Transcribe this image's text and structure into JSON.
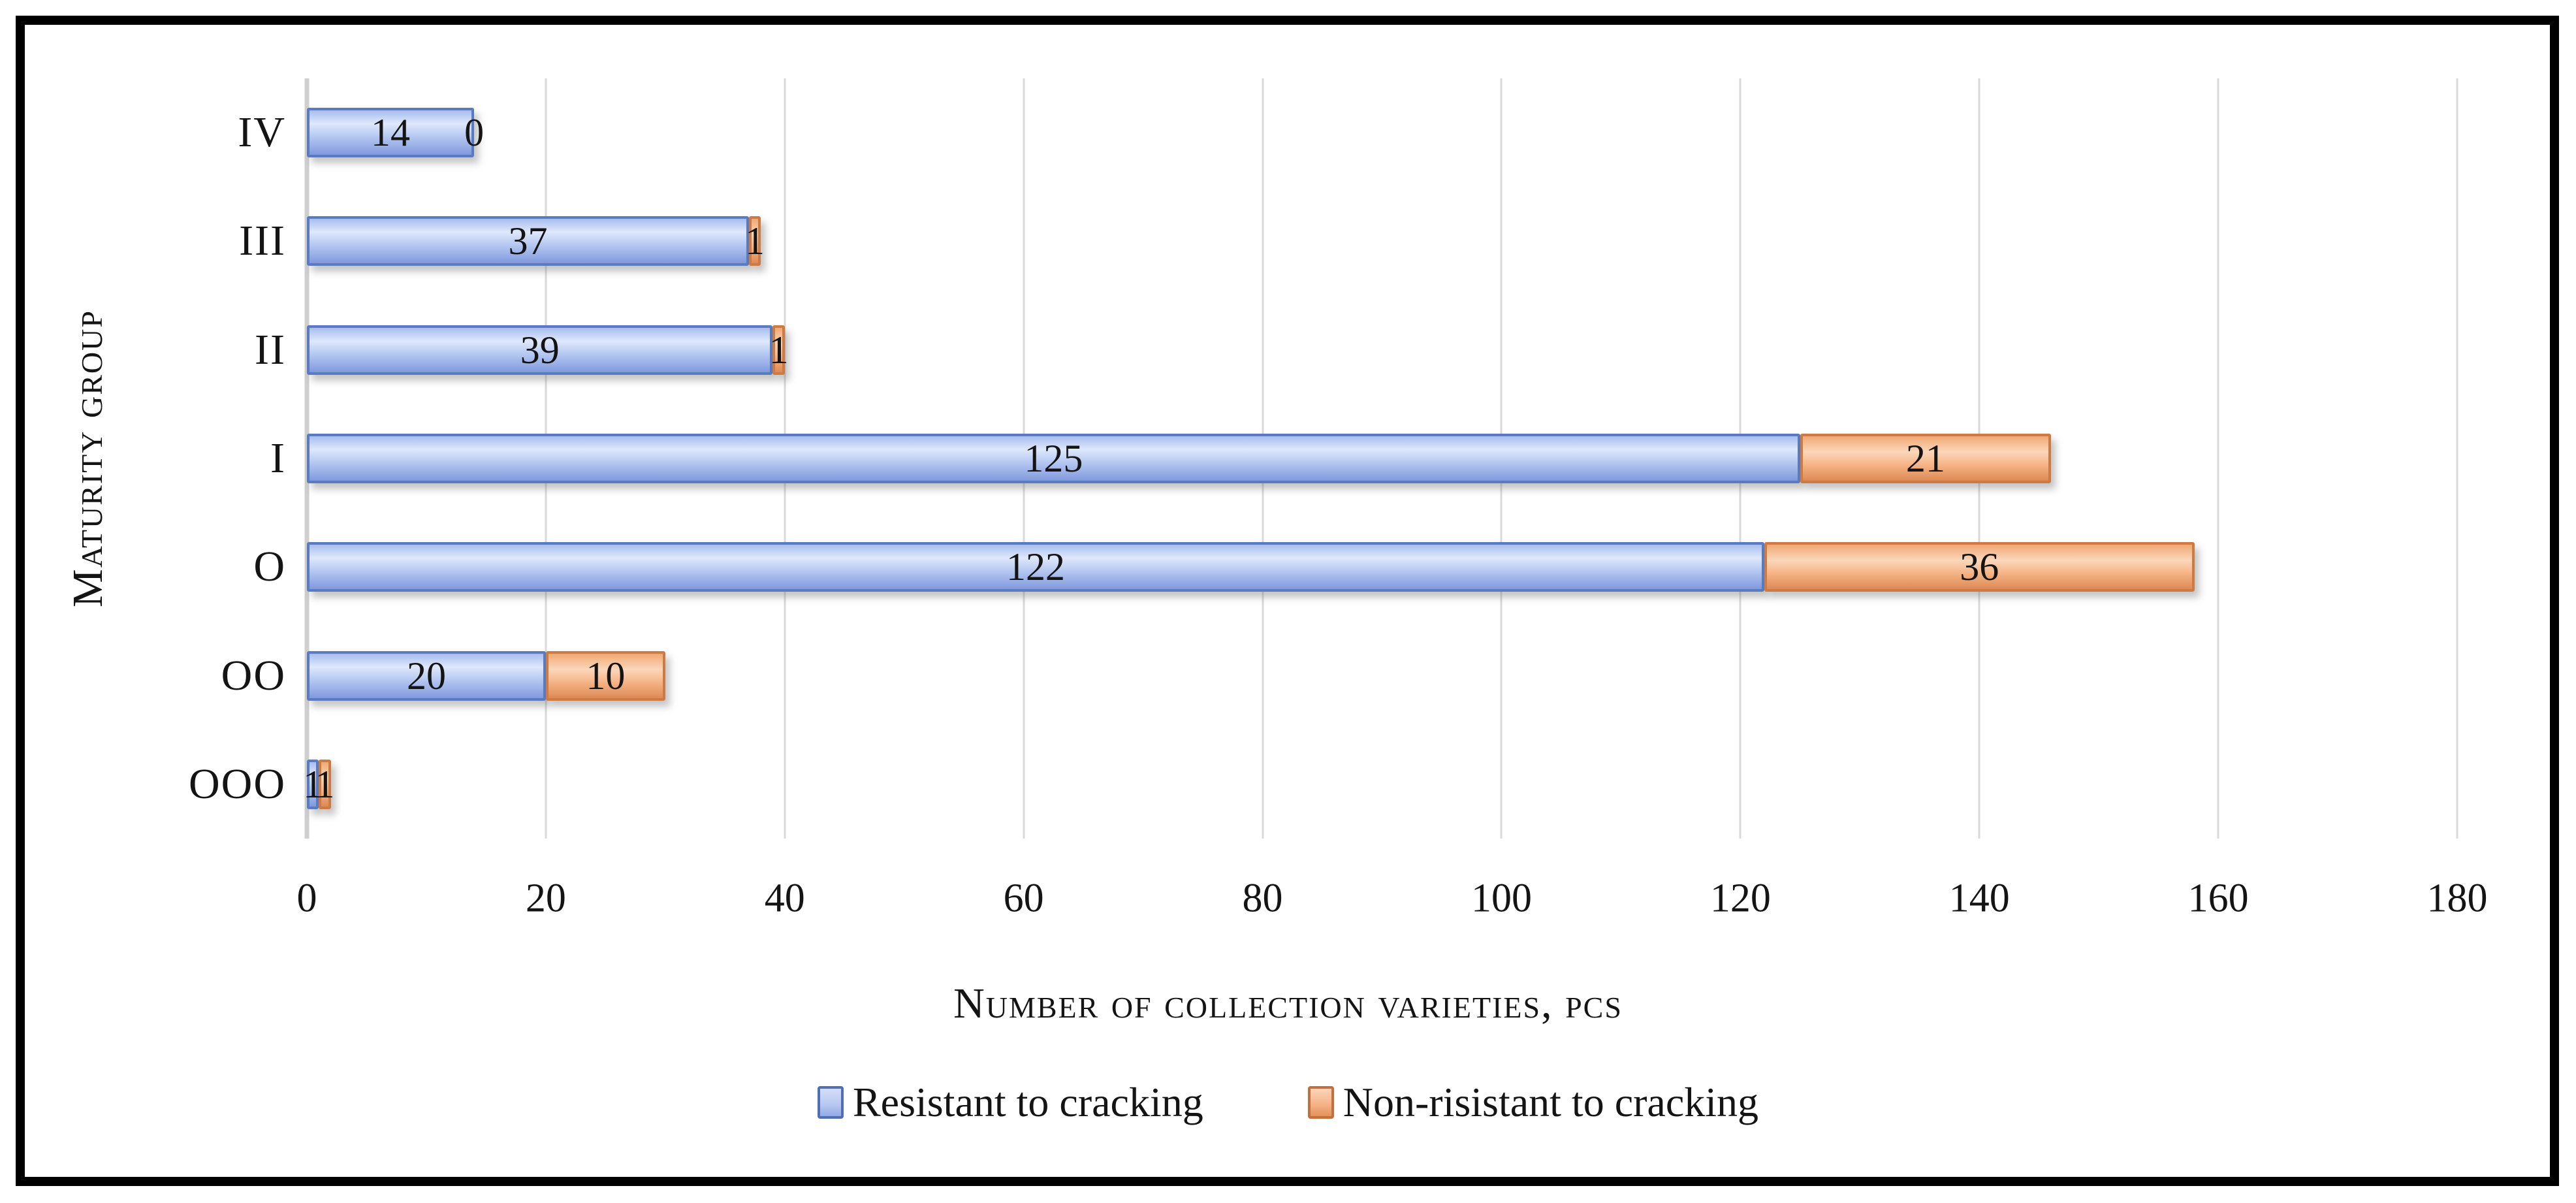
{
  "figure": {
    "background": "#ffffff",
    "frame_color": "#000000"
  },
  "chart_data": {
    "type": "bar",
    "orientation": "horizontal",
    "stacked": true,
    "categories": [
      "IV",
      "III",
      "II",
      "I",
      "O",
      "OO",
      "OOO"
    ],
    "series": [
      {
        "name": "Resistant to cracking",
        "color": "#aec3f0",
        "border_color": "#5a7bbf",
        "values": [
          14,
          37,
          39,
          125,
          122,
          20,
          1
        ]
      },
      {
        "name": "Non-risistant to cracking",
        "color": "#f5b78c",
        "border_color": "#cd7a44",
        "values": [
          0,
          1,
          1,
          21,
          36,
          10,
          1
        ]
      }
    ],
    "title": "",
    "xlabel": "Number of collection varieties, pcs",
    "ylabel": "Maturity group",
    "xlim": [
      0,
      180
    ],
    "xticks": [
      0,
      20,
      40,
      60,
      80,
      100,
      120,
      140,
      160,
      180
    ],
    "grid": true,
    "gridline_color": "#d9d9d9",
    "legend_position": "bottom"
  }
}
